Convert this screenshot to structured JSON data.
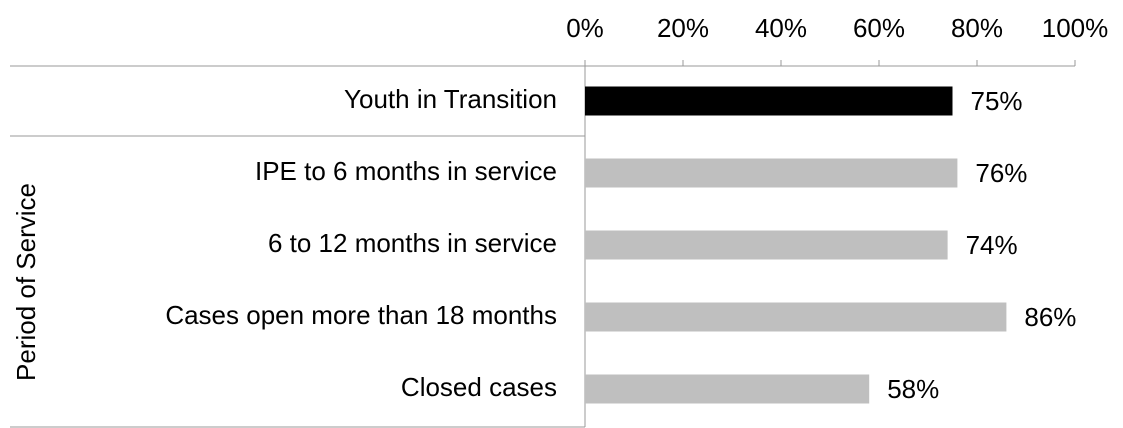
{
  "chart_data": {
    "type": "bar",
    "orientation": "horizontal",
    "categories": [
      "Youth in Transition",
      "IPE to 6 months in service",
      "6 to 12 months in service",
      "Cases open more than 18 months",
      "Closed cases"
    ],
    "values": [
      75,
      76,
      74,
      86,
      58
    ],
    "value_labels": [
      "75%",
      "76%",
      "74%",
      "86%",
      "58%"
    ],
    "colors": [
      "#000000",
      "#bfbfbf",
      "#bfbfbf",
      "#bfbfbf",
      "#bfbfbf"
    ],
    "group_label": "Period of Service",
    "xlim": [
      0,
      100
    ],
    "xticks": [
      {
        "value": 0,
        "label": "0%"
      },
      {
        "value": 20,
        "label": "20%"
      },
      {
        "value": 40,
        "label": "40%"
      },
      {
        "value": 60,
        "label": "60%"
      },
      {
        "value": 80,
        "label": "80%"
      },
      {
        "value": 100,
        "label": "100%"
      }
    ]
  }
}
